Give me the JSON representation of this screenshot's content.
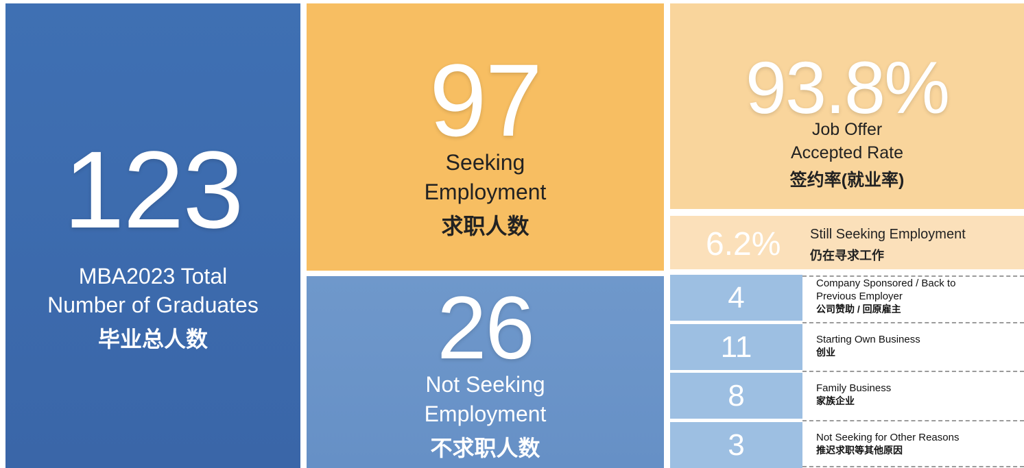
{
  "total": {
    "value": 123,
    "label_lines": [
      "MBA2023 Total",
      "Number of Graduates"
    ],
    "label_cn": "毕业总人数"
  },
  "seeking": {
    "value": 97,
    "label_lines": [
      "Seeking",
      "Employment"
    ],
    "label_cn": "求职人数"
  },
  "not_seeking": {
    "value": 26,
    "label_lines": [
      "Not Seeking",
      "Employment"
    ],
    "label_cn": "不求职人数"
  },
  "accepted": {
    "value": "93.8%",
    "label_lines": [
      "Job Offer",
      "Accepted Rate"
    ],
    "label_cn": "签约率(就业率)"
  },
  "still_seeking": {
    "value": "6.2%",
    "label": "Still Seeking Employment",
    "label_cn": "仍在寻求工作"
  },
  "breakdown": [
    {
      "value": 4,
      "label_lines": [
        "Company Sponsored / Back to",
        "Previous Employer"
      ],
      "label_cn": "公司赞助 / 回原雇主"
    },
    {
      "value": 11,
      "label_lines": [
        "Starting Own Business"
      ],
      "label_cn": "创业"
    },
    {
      "value": 8,
      "label_lines": [
        "Family Business"
      ],
      "label_cn": "家族企业"
    },
    {
      "value": 3,
      "label_lines": [
        "Not Seeking for Other Reasons"
      ],
      "label_cn": "推迟求职等其他原因"
    }
  ]
}
